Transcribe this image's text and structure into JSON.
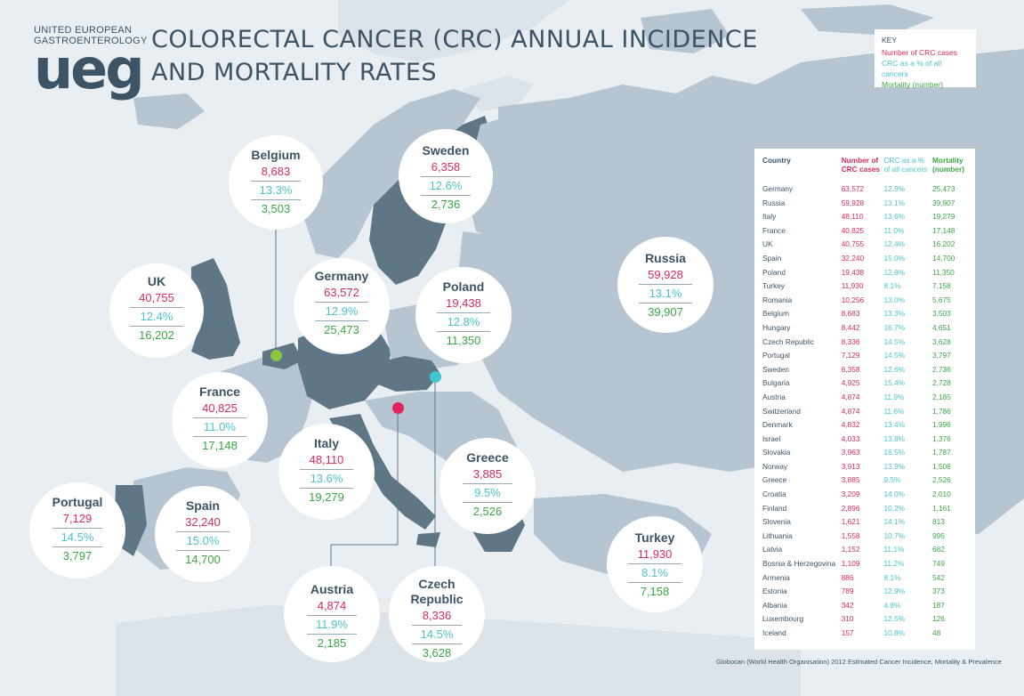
{
  "logo": {
    "line1": "UNITED EUROPEAN",
    "line2": "GASTROENTEROLOGY",
    "mark": "ueg"
  },
  "title": {
    "line1": "COLORECTAL CANCER (CRC) ANNUAL INCIDENCE",
    "line2": "AND MORTALITY RATES"
  },
  "key": {
    "heading": "KEY",
    "cases": "Number of CRC cases",
    "percent": "CRC as a % of all cancers",
    "mortality": "Mortality (number)"
  },
  "colors": {
    "cases": "#d72c5a",
    "percent": "#4cc3cc",
    "mortality": "#3aa844",
    "text": "#3d5366"
  },
  "bubbles": {
    "belgium": {
      "name": "Belgium",
      "cases": "8,683",
      "percent": "13.3%",
      "mortality": "3,503"
    },
    "sweden": {
      "name": "Sweden",
      "cases": "6,358",
      "percent": "12.6%",
      "mortality": "2,736"
    },
    "uk": {
      "name": "UK",
      "cases": "40,755",
      "percent": "12.4%",
      "mortality": "16,202"
    },
    "germany": {
      "name": "Germany",
      "cases": "63,572",
      "percent": "12.9%",
      "mortality": "25,473"
    },
    "poland": {
      "name": "Poland",
      "cases": "19,438",
      "percent": "12.8%",
      "mortality": "11,350"
    },
    "russia": {
      "name": "Russia",
      "cases": "59,928",
      "percent": "13.1%",
      "mortality": "39,907"
    },
    "france": {
      "name": "France",
      "cases": "40,825",
      "percent": "11.0%",
      "mortality": "17,148"
    },
    "italy": {
      "name": "Italy",
      "cases": "48,110",
      "percent": "13.6%",
      "mortality": "19,279"
    },
    "greece": {
      "name": "Greece",
      "cases": "3,885",
      "percent": "9.5%",
      "mortality": "2,526"
    },
    "portugal": {
      "name": "Portugal",
      "cases": "7,129",
      "percent": "14.5%",
      "mortality": "3,797"
    },
    "spain": {
      "name": "Spain",
      "cases": "32,240",
      "percent": "15.0%",
      "mortality": "14,700"
    },
    "turkey": {
      "name": "Turkey",
      "cases": "11,930",
      "percent": "8.1%",
      "mortality": "7,158"
    },
    "austria": {
      "name": "Austria",
      "cases": "4,874",
      "percent": "11.9%",
      "mortality": "2,185"
    },
    "czech": {
      "name1": "Czech",
      "name2": "Republic",
      "cases": "8,336",
      "percent": "14.5%",
      "mortality": "3,628"
    }
  },
  "table": {
    "headers": {
      "country": "Country",
      "cases1": "Number of",
      "cases2": "CRC cases",
      "percent1": "CRC as a %",
      "percent2": "of all cancers",
      "mortality1": "Mortality",
      "mortality2": "(number)"
    },
    "rows": [
      [
        "Germany",
        "63,572",
        "12.9%",
        "25,473"
      ],
      [
        "Russia",
        "59,928",
        "13.1%",
        "39,907"
      ],
      [
        "Italy",
        "48,110",
        "13.6%",
        "19,279"
      ],
      [
        "France",
        "40,825",
        "11.0%",
        "17,148"
      ],
      [
        "UK",
        "40,755",
        "12.4%",
        "16,202"
      ],
      [
        "Spain",
        "32,240",
        "15.0%",
        "14,700"
      ],
      [
        "Poland",
        "19,438",
        "12.8%",
        "11,350"
      ],
      [
        "Turkey",
        "11,930",
        "8.1%",
        "7,158"
      ],
      [
        "Romania",
        "10,256",
        "13.0%",
        "5,675"
      ],
      [
        "Belgium",
        "8,683",
        "13.3%",
        "3,503"
      ],
      [
        "Hungary",
        "8,442",
        "16.7%",
        "4,651"
      ],
      [
        "Czech Republic",
        "8,336",
        "14.5%",
        "3,628"
      ],
      [
        "Portugal",
        "7,129",
        "14.5%",
        "3,797"
      ],
      [
        "Sweden",
        "6,358",
        "12.6%",
        "2,736"
      ],
      [
        "Bulgaria",
        "4,925",
        "15.4%",
        "2,728"
      ],
      [
        "Austria",
        "4,874",
        "11.9%",
        "2,185"
      ],
      [
        "Switzerland",
        "4,874",
        "11.6%",
        "1,786"
      ],
      [
        "Denmark",
        "4,832",
        "13.4%",
        "1,996"
      ],
      [
        "Israel",
        "4,033",
        "13.8%",
        "1,376"
      ],
      [
        "Slovakia",
        "3,963",
        "16.5%",
        "1,787"
      ],
      [
        "Norway",
        "3,913",
        "13.9%",
        "1,506"
      ],
      [
        "Greece",
        "3,885",
        "9.5%",
        "2,526"
      ],
      [
        "Croatia",
        "3,209",
        "14.0%",
        "2,010"
      ],
      [
        "Finland",
        "2,896",
        "10.2%",
        "1,161"
      ],
      [
        "Slovenia",
        "1,621",
        "14.1%",
        "813"
      ],
      [
        "Lithuania",
        "1,558",
        "10.7%",
        "995"
      ],
      [
        "Latvia",
        "1,152",
        "11.1%",
        "682"
      ],
      [
        "Bosnia & Herzegovina",
        "1,109",
        "11.2%",
        "749"
      ],
      [
        "Armenia",
        "886",
        "8.1%",
        "542"
      ],
      [
        "Estonia",
        "789",
        "12.9%",
        "373"
      ],
      [
        "Albania",
        "342",
        "4.8%",
        "187"
      ],
      [
        "Luxembourg",
        "310",
        "12.5%",
        "126"
      ],
      [
        "Iceland",
        "157",
        "10.8%",
        "48"
      ]
    ]
  },
  "footnote": "Globocan (World Health Organisation) 2012  Estimated Cancer Incidence, Mortality & Prevalence"
}
